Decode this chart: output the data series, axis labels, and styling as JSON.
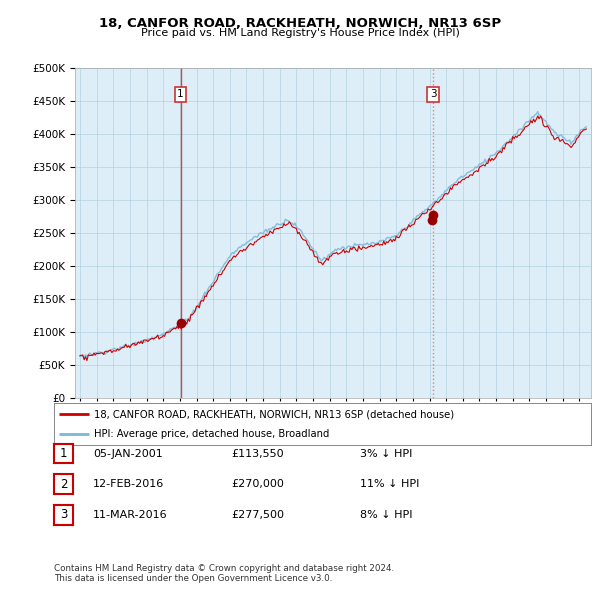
{
  "title": "18, CANFOR ROAD, RACKHEATH, NORWICH, NR13 6SP",
  "subtitle": "Price paid vs. HM Land Registry's House Price Index (HPI)",
  "legend_line1": "18, CANFOR ROAD, RACKHEATH, NORWICH, NR13 6SP (detached house)",
  "legend_line2": "HPI: Average price, detached house, Broadland",
  "table_rows": [
    {
      "num": "1",
      "date": "05-JAN-2001",
      "price": "£113,550",
      "hpi": "3% ↓ HPI"
    },
    {
      "num": "2",
      "date": "12-FEB-2016",
      "price": "£270,000",
      "hpi": "11% ↓ HPI"
    },
    {
      "num": "3",
      "date": "11-MAR-2016",
      "price": "£277,500",
      "hpi": "8% ↓ HPI"
    }
  ],
  "footer": "Contains HM Land Registry data © Crown copyright and database right 2024.\nThis data is licensed under the Open Government Licence v3.0.",
  "hpi_color": "#7ab8d9",
  "price_color": "#cc0000",
  "chart_bg": "#ddeeff",
  "background_color": "#ffffff",
  "ylim": [
    0,
    500000
  ],
  "yticks": [
    0,
    50000,
    100000,
    150000,
    200000,
    250000,
    300000,
    350000,
    400000,
    450000,
    500000
  ],
  "sale1_year": 2001.04,
  "sale1_price": 113550,
  "sale2_year": 2016.12,
  "sale2_price": 270000,
  "sale3_year": 2016.21,
  "sale3_price": 277500
}
